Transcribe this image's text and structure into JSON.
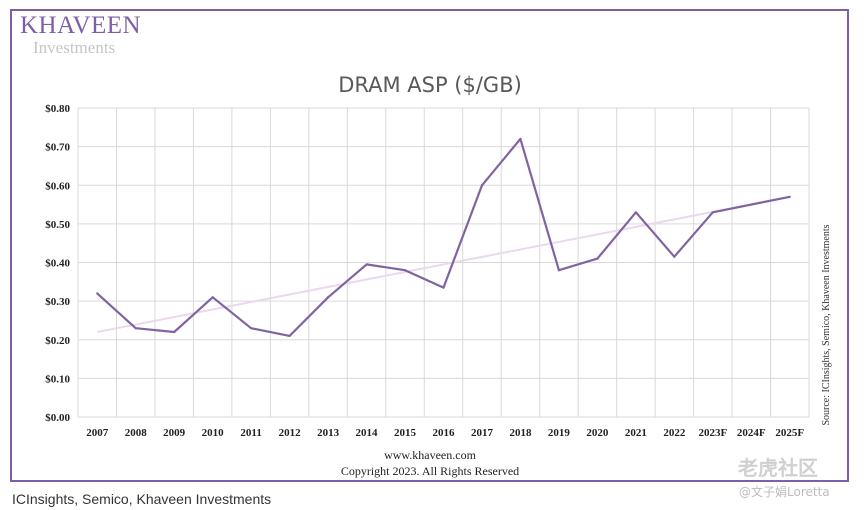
{
  "brand": {
    "name": "KHAVEEN",
    "sub": "Investments"
  },
  "chart_data": {
    "type": "line",
    "title": "DRAM ASP ($/GB)",
    "categories": [
      "2007",
      "2008",
      "2009",
      "2010",
      "2011",
      "2012",
      "2013",
      "2014",
      "2015",
      "2016",
      "2017",
      "2018",
      "2019",
      "2020",
      "2021",
      "2022",
      "2023F",
      "2024F",
      "2025F"
    ],
    "series": [
      {
        "values": [
          0.32,
          0.23,
          0.22,
          0.31,
          0.23,
          0.21,
          0.31,
          0.395,
          0.38,
          0.335,
          0.6,
          0.72,
          0.38,
          0.41,
          0.53,
          0.415,
          0.53,
          0.55,
          0.57
        ],
        "color": "#8064a2"
      }
    ],
    "trendline": {
      "from": 0.22,
      "to": 0.57,
      "color": "#ead8ee"
    },
    "ylim": [
      0,
      0.8
    ],
    "yticks": [
      "$0.00",
      "$0.10",
      "$0.20",
      "$0.30",
      "$0.40",
      "$0.50",
      "$0.60",
      "$0.70",
      "$0.80"
    ],
    "grid": true,
    "footer": [
      "www.khaveen.com",
      "Copyright 2023. All Rights Reserved"
    ],
    "source_note": "Source: ICInsights, Semico, Khaveen Investments"
  },
  "caption": "ICInsights, Semico, Khaveen Investments",
  "watermark": {
    "top": "老虎社区",
    "bottom": "@文子娟Loretta"
  }
}
